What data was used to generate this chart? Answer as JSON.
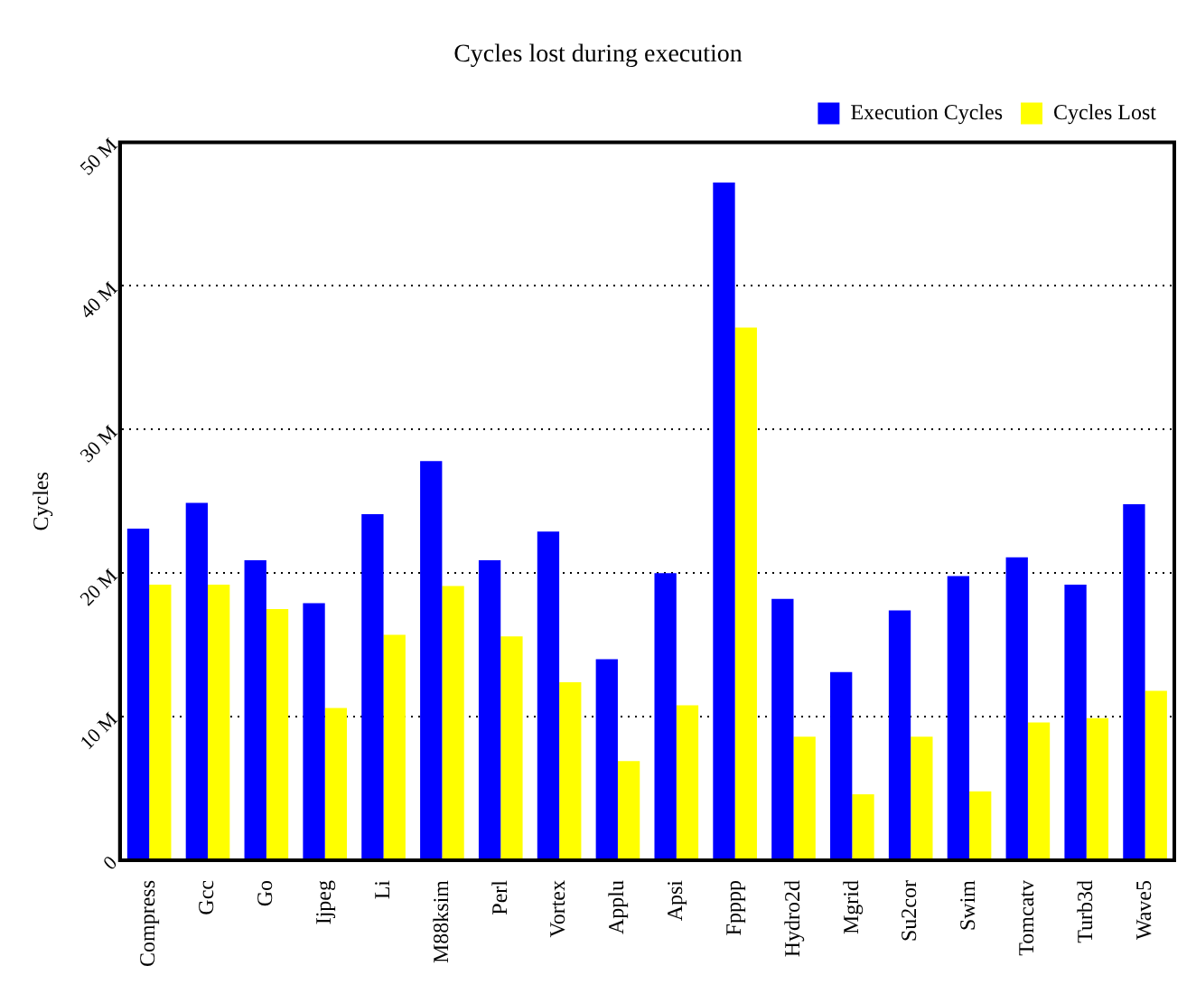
{
  "chart_data": {
    "type": "bar",
    "title": "Cycles lost during execution",
    "ylabel": "Cycles",
    "categories": [
      "Compress",
      "Gcc",
      "Go",
      "Ijpeg",
      "Li",
      "M88ksim",
      "Perl",
      "Vortex",
      "Applu",
      "Apsi",
      "Fpppp",
      "Hydro2d",
      "Mgrid",
      "Su2cor",
      "Swim",
      "Tomcatv",
      "Turb3d",
      "Wave5"
    ],
    "series": [
      {
        "name": "Execution Cycles",
        "color": "#0000ff",
        "values": [
          23.1,
          24.9,
          20.9,
          17.9,
          24.1,
          27.8,
          20.9,
          22.9,
          14.0,
          20.0,
          47.2,
          18.2,
          13.1,
          17.4,
          19.8,
          21.1,
          19.2,
          24.8
        ]
      },
      {
        "name": "Cycles Lost",
        "color": "#ffff00",
        "values": [
          19.2,
          19.2,
          17.5,
          10.6,
          15.7,
          19.1,
          15.6,
          12.4,
          6.9,
          10.8,
          37.1,
          8.6,
          4.6,
          8.6,
          4.8,
          9.6,
          9.9,
          11.8
        ]
      }
    ],
    "ylim": [
      0,
      50
    ],
    "yticks": [
      0,
      {
        "value": 10,
        "label": "10 M"
      },
      {
        "value": 20,
        "label": "20 M"
      },
      {
        "value": 30,
        "label": "30 M"
      },
      {
        "value": 40,
        "label": "40 M"
      },
      {
        "value": 50,
        "label": "50 M"
      }
    ],
    "grid": "y",
    "legend": "top right"
  }
}
